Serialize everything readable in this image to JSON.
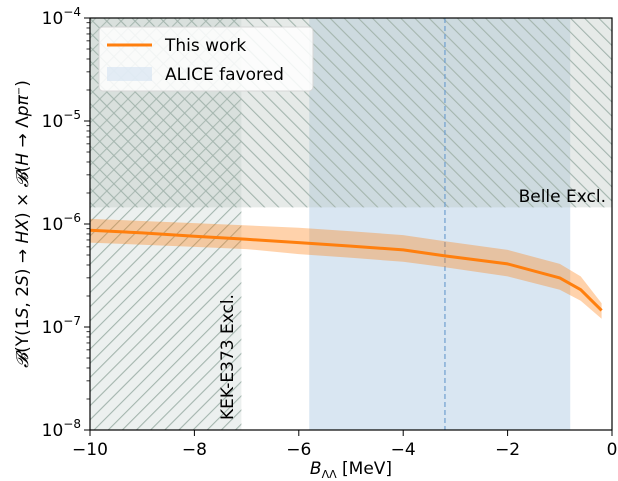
{
  "chart_data": {
    "type": "line",
    "xlabel": "B_ΛΛ [MeV]",
    "ylabel": "𝓑(Υ(1S,2S)→HX) × 𝓑(H→Λpπ⁻)",
    "xlim": [
      -10,
      0
    ],
    "ylim": [
      1e-08,
      0.0001
    ],
    "yscale": "log",
    "grid": false,
    "legend_position": "upper-left",
    "x_ticks": [
      {
        "value": -10,
        "label": "−10"
      },
      {
        "value": -8,
        "label": "−8"
      },
      {
        "value": -6,
        "label": "−6"
      },
      {
        "value": -4,
        "label": "−4"
      },
      {
        "value": -2,
        "label": "−2"
      },
      {
        "value": 0,
        "label": "0"
      }
    ],
    "y_ticks": [
      {
        "value": 1e-08,
        "base": "10",
        "exp": "−8"
      },
      {
        "value": 1e-07,
        "base": "10",
        "exp": "−7"
      },
      {
        "value": 1e-06,
        "base": "10",
        "exp": "−6"
      },
      {
        "value": 1e-05,
        "base": "10",
        "exp": "−5"
      },
      {
        "value": 0.0001,
        "base": "10",
        "exp": "−4"
      }
    ],
    "series": [
      {
        "name": "This work",
        "color": "#ff7f0e",
        "x": [
          -10,
          -9,
          -8,
          -7,
          -6,
          -5,
          -4,
          -3.2,
          -2,
          -1,
          -0.6,
          -0.2
        ],
        "y": [
          8.7e-07,
          8.2e-07,
          7.6e-07,
          7.1e-07,
          6.6e-07,
          6.1e-07,
          5.6e-07,
          4.9e-07,
          4.1e-07,
          3e-07,
          2.3e-07,
          1.45e-07
        ],
        "band_upper": [
          1.12e-06,
          1.07e-06,
          1.02e-06,
          9.7e-07,
          9.2e-07,
          8.5e-07,
          7.8e-07,
          6.8e-07,
          5.6e-07,
          4.1e-07,
          3.1e-07,
          1.7e-07
        ],
        "band_lower": [
          6.6e-07,
          6.3e-07,
          6e-07,
          5.7e-07,
          5.1e-07,
          4.7e-07,
          4.3e-07,
          3.8e-07,
          3.1e-07,
          2.3e-07,
          1.8e-07,
          1.2e-07
        ]
      }
    ],
    "regions": [
      {
        "name": "ALICE favored",
        "x_range": [
          -5.8,
          -0.8
        ],
        "y_range": [
          1e-08,
          0.0001
        ],
        "color": "#d9e6f2"
      },
      {
        "name": "KEK-E373 Excl.",
        "x_range": [
          -10,
          -7.1
        ],
        "y_range": [
          1e-08,
          0.0001
        ],
        "color": "#c8d3d0"
      },
      {
        "name": "Belle Excl.",
        "x_range": [
          -10,
          0
        ],
        "y_range": [
          1.45e-06,
          0.0001
        ],
        "color": "#b6c4bd"
      }
    ],
    "reference_line": {
      "x": -3.2,
      "color": "#6f9fcf"
    },
    "annotations": [
      {
        "text": "KEK-E373 Excl."
      },
      {
        "text": "Belle Excl."
      }
    ],
    "legend": [
      {
        "label": "This work",
        "kind": "line",
        "color": "#ff7f0e"
      },
      {
        "label": "ALICE favored",
        "kind": "patch",
        "color": "#d9e6f2"
      }
    ]
  }
}
